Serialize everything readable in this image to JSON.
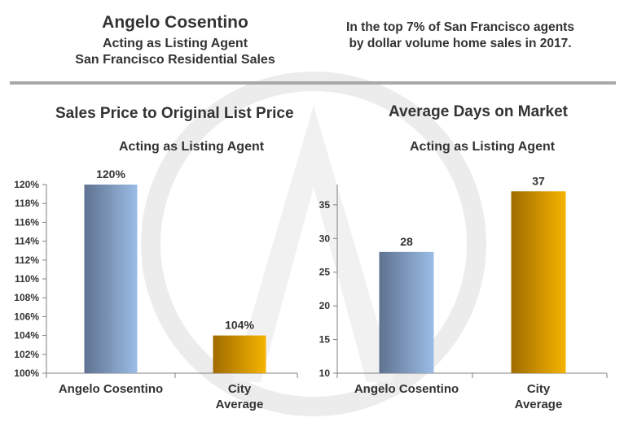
{
  "header": {
    "name": "Angelo Cosentino",
    "role": "Acting as Listing Agent",
    "market": "San Francisco Residential Sales",
    "stat": "In the top 7% of San Francisco agents by dollar volume home sales in 2017."
  },
  "colors": {
    "agent_bar_dark": "#5f7290",
    "agent_bar_light": "#9bbde6",
    "city_bar_dark": "#a06b00",
    "city_bar_light": "#f5b400",
    "rule": "#a9a9a9"
  },
  "chart_data": [
    {
      "type": "bar",
      "title": "Sales Price to Original List Price",
      "subtitle": "Acting as Listing Agent",
      "categories": [
        "Angelo Cosentino",
        "City Average"
      ],
      "category_lines": [
        [
          "Angelo Cosentino"
        ],
        [
          "City",
          "Average"
        ]
      ],
      "values": [
        120,
        104
      ],
      "data_labels": [
        "120%",
        "104%"
      ],
      "ylim": [
        100,
        120
      ],
      "yticks": [
        100,
        102,
        104,
        106,
        108,
        110,
        112,
        114,
        116,
        118,
        120
      ],
      "ytick_labels": [
        "100%",
        "102%",
        "104%",
        "106%",
        "108%",
        "110%",
        "112%",
        "114%",
        "116%",
        "118%",
        "120%"
      ],
      "grid": false,
      "xlabel": "",
      "ylabel": ""
    },
    {
      "type": "bar",
      "title": "Average Days on Market",
      "subtitle": "Acting as Listing Agent",
      "categories": [
        "Angelo Cosentino",
        "City Average"
      ],
      "category_lines": [
        [
          "Angelo Cosentino"
        ],
        [
          "City",
          "Average"
        ]
      ],
      "values": [
        28,
        37
      ],
      "data_labels": [
        "28",
        "37"
      ],
      "ylim": [
        10,
        38
      ],
      "yticks": [
        10,
        15,
        20,
        25,
        30,
        35
      ],
      "ytick_labels": [
        "10",
        "15",
        "20",
        "25",
        "30",
        "35"
      ],
      "grid": false,
      "xlabel": "",
      "ylabel": ""
    }
  ]
}
